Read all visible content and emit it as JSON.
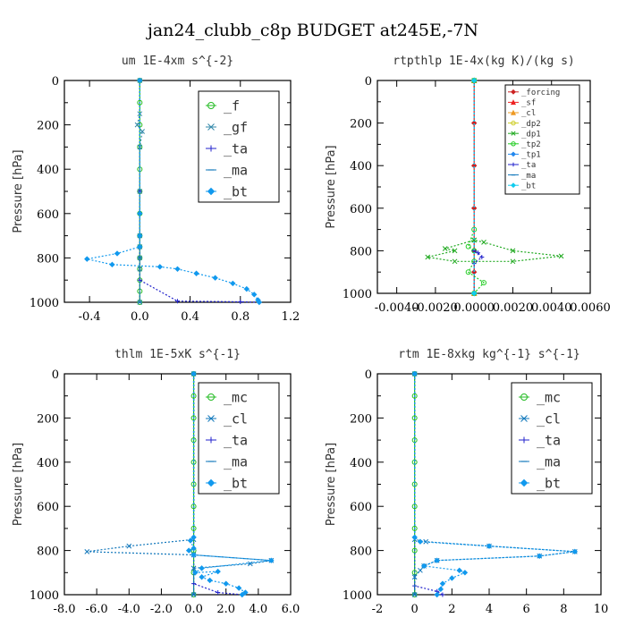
{
  "title": "jan24_clubb_c8p  BUDGET at245E,-7N",
  "chart_data": [
    {
      "type": "line",
      "title": "um   1E-4xm s^{-2}",
      "ylabel": "Pressure [hPa]",
      "xlim": [
        -0.6,
        1.2
      ],
      "ylim": [
        1000,
        0
      ],
      "xticks": [
        "-0.4",
        "0.0",
        "0.4",
        "0.8",
        "1.2"
      ],
      "xtick_values": [
        -0.4,
        0,
        0.4,
        0.8,
        1.2
      ],
      "yticks": [
        "0",
        "200",
        "400",
        "600",
        "800",
        "1000"
      ],
      "legend": {
        "position": "top-right",
        "entries": [
          "_f",
          "_gf",
          "_ta",
          "_ma",
          "_bt"
        ]
      },
      "series": [
        {
          "name": "_f",
          "color": "#22bb22",
          "marker": "circle",
          "points": [
            [
              0,
              0
            ],
            [
              0,
              100
            ],
            [
              0,
              200
            ],
            [
              0,
              300
            ],
            [
              0,
              400
            ],
            [
              0,
              500
            ],
            [
              0,
              600
            ],
            [
              0,
              700
            ],
            [
              0,
              750
            ],
            [
              0,
              800
            ],
            [
              0,
              850
            ],
            [
              0,
              900
            ],
            [
              0,
              950
            ],
            [
              0,
              1000
            ]
          ]
        },
        {
          "name": "_gf",
          "color": "#3388aa",
          "marker": "x",
          "points": [
            [
              0,
              0
            ],
            [
              0,
              150
            ],
            [
              -0.02,
              200
            ],
            [
              0.02,
              230
            ],
            [
              0,
              300
            ],
            [
              0,
              500
            ],
            [
              0,
              700
            ],
            [
              0,
              750
            ],
            [
              0,
              800
            ],
            [
              0,
              850
            ],
            [
              0,
              1000
            ]
          ]
        },
        {
          "name": "_ta",
          "color": "#2222cc",
          "marker": "plus",
          "points": [
            [
              0,
              0
            ],
            [
              0,
              500
            ],
            [
              0,
              900
            ],
            [
              0.3,
              995
            ],
            [
              0.8,
              998
            ],
            [
              0.95,
              1000
            ]
          ]
        },
        {
          "name": "_ma",
          "color": "#1177bb",
          "marker": "dash",
          "points": [
            [
              0,
              0
            ],
            [
              0,
              800
            ],
            [
              0,
              1000
            ]
          ]
        },
        {
          "name": "_bt",
          "color": "#1199ee",
          "marker": "diamond",
          "points": [
            [
              0,
              0
            ],
            [
              0,
              600
            ],
            [
              0,
              700
            ],
            [
              0,
              750
            ],
            [
              -0.18,
              780
            ],
            [
              -0.42,
              805
            ],
            [
              -0.22,
              830
            ],
            [
              0.16,
              840
            ],
            [
              0.3,
              850
            ],
            [
              0.45,
              870
            ],
            [
              0.6,
              890
            ],
            [
              0.74,
              915
            ],
            [
              0.85,
              940
            ],
            [
              0.91,
              965
            ],
            [
              0.94,
              990
            ],
            [
              0.95,
              1000
            ]
          ]
        }
      ]
    },
    {
      "type": "line",
      "title": "rtpthlp   1E-4x(kg K)/(kg s)",
      "ylabel": "Pressure [hPa]",
      "xlim": [
        -0.005,
        0.006
      ],
      "ylim": [
        1000,
        0
      ],
      "xticks": [
        "-0.0040",
        "-0.0020",
        "0.0000",
        "0.0020",
        "0.0040",
        "0.0060"
      ],
      "xtick_values": [
        -0.004,
        -0.002,
        0,
        0.002,
        0.004,
        0.006
      ],
      "yticks": [
        "0",
        "200",
        "400",
        "600",
        "800",
        "1000"
      ],
      "legend": {
        "position": "top-right",
        "entries": [
          "_forcing",
          "_sf",
          "_cl",
          "_dp2",
          "_dp1",
          "_tp2",
          "_tp1",
          "_ta",
          "_ma",
          "_bt"
        ]
      },
      "series": [
        {
          "name": "_forcing",
          "color": "#cc2222",
          "marker": "diamond",
          "points": [
            [
              0,
              0
            ],
            [
              0,
              200
            ],
            [
              0,
              400
            ],
            [
              0,
              600
            ],
            [
              0,
              800
            ],
            [
              0,
              900
            ],
            [
              0,
              1000
            ]
          ]
        },
        {
          "name": "_sf",
          "color": "#ee2222",
          "marker": "triangle",
          "points": [
            [
              0,
              0
            ],
            [
              0,
              1000
            ]
          ]
        },
        {
          "name": "_cl",
          "color": "#ee9922",
          "marker": "triangle",
          "points": [
            [
              0,
              0
            ],
            [
              0,
              1000
            ]
          ]
        },
        {
          "name": "_dp2",
          "color": "#cccc22",
          "marker": "circle",
          "points": [
            [
              0,
              0
            ],
            [
              0,
              1000
            ]
          ]
        },
        {
          "name": "_dp1",
          "color": "#22aa22",
          "marker": "x",
          "points": [
            [
              0,
              0
            ],
            [
              0,
              750
            ],
            [
              -0.0015,
              790
            ],
            [
              -0.001,
              800
            ],
            [
              -0.0024,
              830
            ],
            [
              -0.001,
              850
            ],
            [
              0.002,
              850
            ],
            [
              0.0045,
              825
            ],
            [
              0.002,
              800
            ],
            [
              0.0005,
              760
            ],
            [
              0,
              750
            ]
          ]
        },
        {
          "name": "_tp2",
          "color": "#22cc22",
          "marker": "circle",
          "points": [
            [
              0,
              0
            ],
            [
              0,
              700
            ],
            [
              -0.0003,
              780
            ],
            [
              0,
              800
            ],
            [
              0,
              850
            ],
            [
              -0.0003,
              900
            ],
            [
              0.0005,
              950
            ],
            [
              0,
              1000
            ]
          ]
        },
        {
          "name": "_tp1",
          "color": "#2288ee",
          "marker": "diamond",
          "points": [
            [
              0,
              0
            ],
            [
              0,
              1000
            ]
          ]
        },
        {
          "name": "_ta",
          "color": "#2222cc",
          "marker": "plus",
          "points": [
            [
              0,
              0
            ],
            [
              0,
              800
            ],
            [
              0.0002,
              810
            ],
            [
              0.0004,
              830
            ],
            [
              0,
              860
            ],
            [
              0,
              1000
            ]
          ]
        },
        {
          "name": "_ma",
          "color": "#1177bb",
          "marker": "dash",
          "points": [
            [
              0,
              0
            ],
            [
              0,
              1000
            ]
          ]
        },
        {
          "name": "_bt",
          "color": "#11ccee",
          "marker": "diamond",
          "points": [
            [
              0,
              0
            ],
            [
              0,
              1000
            ]
          ]
        }
      ]
    },
    {
      "type": "line",
      "title": "thlm   1E-5xK s^{-1}",
      "ylabel": "Pressure [hPa]",
      "xlim": [
        -8,
        6
      ],
      "ylim": [
        1000,
        0
      ],
      "xticks": [
        "-8.0",
        "-6.0",
        "-4.0",
        "-2.0",
        "0.0",
        "2.0",
        "4.0",
        "6.0"
      ],
      "xtick_values": [
        -8,
        -6,
        -4,
        -2,
        0,
        2,
        4,
        6
      ],
      "yticks": [
        "0",
        "200",
        "400",
        "600",
        "800",
        "1000"
      ],
      "legend": {
        "position": "top-right",
        "entries": [
          "_mc",
          "_cl",
          "_ta",
          "_ma",
          "_bt"
        ]
      },
      "series": [
        {
          "name": "_mc",
          "color": "#22bb22",
          "marker": "circle",
          "points": [
            [
              0,
              0
            ],
            [
              0,
              100
            ],
            [
              0,
              200
            ],
            [
              0,
              300
            ],
            [
              0,
              400
            ],
            [
              0,
              500
            ],
            [
              0,
              600
            ],
            [
              0,
              700
            ],
            [
              0,
              800
            ],
            [
              0,
              900
            ],
            [
              0,
              1000
            ]
          ]
        },
        {
          "name": "_cl",
          "color": "#1177bb",
          "marker": "x",
          "points": [
            [
              0,
              0
            ],
            [
              0,
              750
            ],
            [
              -4.0,
              780
            ],
            [
              -6.6,
              805
            ],
            [
              0,
              820
            ],
            [
              4.8,
              845
            ],
            [
              3.5,
              860
            ],
            [
              0,
              880
            ],
            [
              0,
              1000
            ]
          ]
        },
        {
          "name": "_ta",
          "color": "#2222cc",
          "marker": "plus",
          "points": [
            [
              0,
              0
            ],
            [
              0,
              950
            ],
            [
              1.5,
              990
            ],
            [
              3.0,
              1000
            ]
          ]
        },
        {
          "name": "_ma",
          "color": "#1177bb",
          "marker": "dash",
          "points": [
            [
              0,
              0
            ],
            [
              0,
              1000
            ]
          ]
        },
        {
          "name": "_bt",
          "color": "#1199ee",
          "marker": "diamond",
          "points": [
            [
              0,
              0
            ],
            [
              0,
              740
            ],
            [
              -0.2,
              755
            ],
            [
              0,
              790
            ],
            [
              -0.3,
              800
            ],
            [
              0,
              820
            ],
            [
              4.8,
              845
            ],
            [
              0.5,
              880
            ],
            [
              0.1,
              900
            ],
            [
              1.5,
              895
            ],
            [
              0.5,
              920
            ],
            [
              1.0,
              935
            ],
            [
              2.0,
              950
            ],
            [
              2.8,
              970
            ],
            [
              3.2,
              990
            ],
            [
              3.0,
              1000
            ]
          ]
        }
      ]
    },
    {
      "type": "line",
      "title": "rtm   1E-8xkg kg^{-1} s^{-1}",
      "ylabel": "Pressure [hPa]",
      "xlim": [
        -2,
        10
      ],
      "ylim": [
        1000,
        0
      ],
      "xticks": [
        "-2",
        "0",
        "2",
        "4",
        "6",
        "8",
        "10"
      ],
      "xtick_values": [
        -2,
        0,
        2,
        4,
        6,
        8,
        10
      ],
      "yticks": [
        "0",
        "200",
        "400",
        "600",
        "800",
        "1000"
      ],
      "legend": {
        "position": "top-right",
        "entries": [
          "_mc",
          "_cl",
          "_ta",
          "_ma",
          "_bt"
        ]
      },
      "series": [
        {
          "name": "_mc",
          "color": "#22bb22",
          "marker": "circle",
          "points": [
            [
              0,
              0
            ],
            [
              0,
              100
            ],
            [
              0,
              200
            ],
            [
              0,
              300
            ],
            [
              0,
              400
            ],
            [
              0,
              500
            ],
            [
              0,
              600
            ],
            [
              0,
              700
            ],
            [
              0,
              800
            ],
            [
              0,
              900
            ],
            [
              0,
              1000
            ]
          ]
        },
        {
          "name": "_cl",
          "color": "#1177bb",
          "marker": "x",
          "points": [
            [
              0,
              0
            ],
            [
              0,
              750
            ],
            [
              0.6,
              760
            ],
            [
              4.0,
              780
            ],
            [
              8.6,
              805
            ],
            [
              6.7,
              825
            ],
            [
              1.2,
              845
            ],
            [
              0.5,
              870
            ],
            [
              0.3,
              890
            ],
            [
              0,
              920
            ],
            [
              0,
              1000
            ]
          ]
        },
        {
          "name": "_ta",
          "color": "#2222cc",
          "marker": "plus",
          "points": [
            [
              0,
              0
            ],
            [
              0,
              960
            ],
            [
              1.2,
              985
            ],
            [
              1.5,
              1000
            ]
          ]
        },
        {
          "name": "_ma",
          "color": "#1177bb",
          "marker": "dash",
          "points": [
            [
              0,
              0
            ],
            [
              0,
              1000
            ]
          ]
        },
        {
          "name": "_bt",
          "color": "#1199ee",
          "marker": "diamond",
          "points": [
            [
              0,
              0
            ],
            [
              0,
              740
            ],
            [
              0.3,
              760
            ],
            [
              4.0,
              780
            ],
            [
              8.6,
              805
            ],
            [
              6.7,
              825
            ],
            [
              1.2,
              845
            ],
            [
              0.5,
              870
            ],
            [
              2.4,
              890
            ],
            [
              2.7,
              900
            ],
            [
              2.0,
              925
            ],
            [
              1.5,
              950
            ],
            [
              1.4,
              975
            ],
            [
              1.2,
              1000
            ]
          ]
        }
      ]
    }
  ]
}
